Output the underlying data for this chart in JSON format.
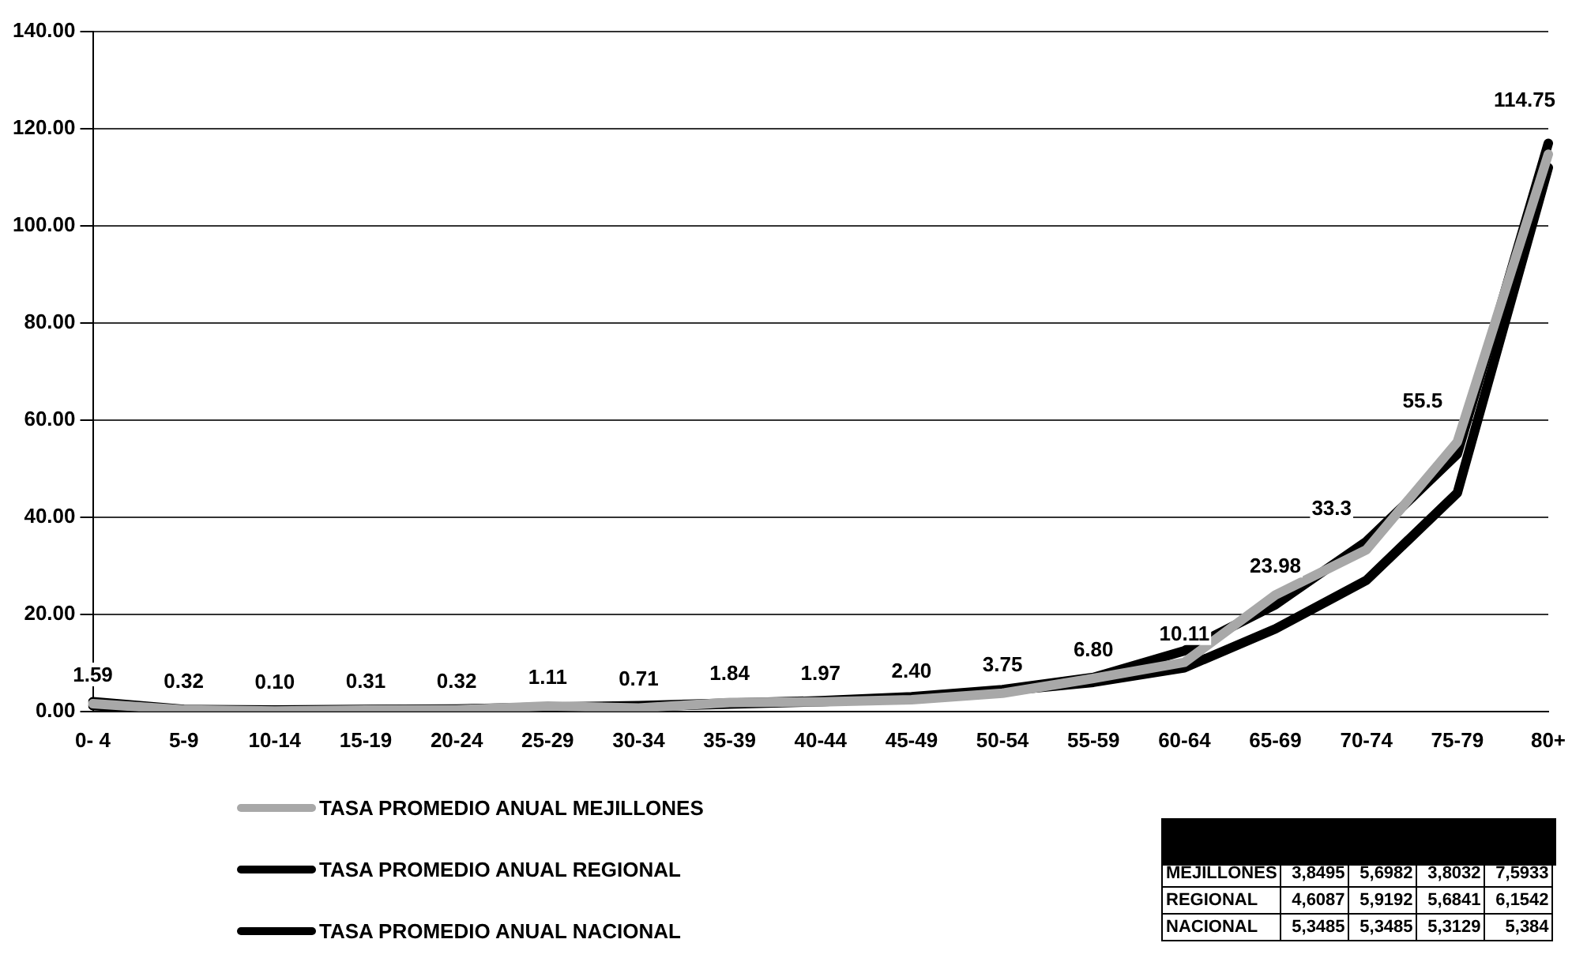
{
  "chart_data": {
    "type": "line",
    "categories": [
      "0- 4",
      "5-9",
      "10-14",
      "15-19",
      "20-24",
      "25-29",
      "30-34",
      "35-39",
      "40-44",
      "45-49",
      "50-54",
      "55-59",
      "60-64",
      "65-69",
      "70-74",
      "75-79",
      "80+"
    ],
    "series": [
      {
        "name": "TASA PROMEDIO ANUAL MEJILLONES",
        "color": "#a8a8a8",
        "values": [
          1.59,
          0.32,
          0.1,
          0.31,
          0.32,
          1.11,
          0.71,
          1.84,
          1.97,
          2.4,
          3.75,
          6.8,
          10.11,
          23.98,
          33.3,
          55.5,
          114.75
        ],
        "value_labels": [
          "1.59",
          "0.32",
          "0.10",
          "0.31",
          "0.32",
          "1.11",
          "0.71",
          "1.84",
          "1.97",
          "2.40",
          "3.75",
          "6.80",
          "10.11",
          "23.98",
          "33.3",
          "55.5",
          "114.75"
        ]
      },
      {
        "name": "TASA PROMEDIO ANUAL REGIONAL",
        "color": "#000000",
        "values": [
          2.0,
          0.4,
          0.3,
          0.4,
          0.5,
          0.9,
          1.2,
          1.7,
          2.2,
          3.0,
          4.5,
          7.0,
          12.5,
          22,
          35,
          53,
          117
        ]
      },
      {
        "name": "TASA PROMEDIO ANUAL NACIONAL",
        "color": "#000000",
        "values": [
          1.2,
          0.3,
          0.2,
          0.3,
          0.4,
          0.8,
          1.0,
          1.5,
          2.0,
          2.8,
          4.2,
          6.0,
          9.0,
          17,
          27,
          45,
          112
        ]
      }
    ],
    "ylim": [
      0,
      140
    ],
    "yticks": [
      {
        "value": 0,
        "label": "0.00"
      },
      {
        "value": 20,
        "label": "20.00"
      },
      {
        "value": 40,
        "label": "40.00"
      },
      {
        "value": 60,
        "label": "60.00"
      },
      {
        "value": 80,
        "label": "80.00"
      },
      {
        "value": 100,
        "label": "100.00"
      },
      {
        "value": 120,
        "label": "120.00"
      },
      {
        "value": 140,
        "label": "140.00"
      }
    ],
    "grid": "y",
    "legend": "bottom left",
    "marker": "none",
    "line_style": "solid",
    "annotations": [
      "MEJILLONES 3,8495 5,6982 3,8032 7,5933",
      "REGIONAL 4,6087 5,9192 5,6841 6,1542",
      "NACIONAL 5,3485 5,3485 5,3129 5,384"
    ]
  }
}
